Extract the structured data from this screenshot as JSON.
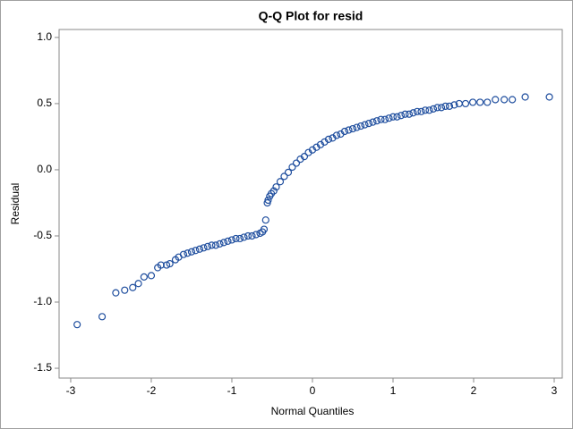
{
  "chart_data": {
    "type": "scatter",
    "title": "Q-Q Plot for resid",
    "xlabel": "Normal Quantiles",
    "ylabel": "Residual",
    "color": "#1f4e9e",
    "xlim": [
      -3.144,
      3.1
    ],
    "ylim": [
      -1.574,
      1.06
    ],
    "xticks": [
      -3,
      -2,
      -1,
      0,
      1,
      2,
      3
    ],
    "yticks": [
      {
        "value": 1.0,
        "label": "1.0"
      },
      0.5,
      {
        "value": 0.0,
        "label": "0.0"
      },
      -0.5,
      {
        "value": -1.0,
        "label": "-1.0"
      },
      -1.5
    ],
    "x": [
      -2.92,
      -2.61,
      -2.44,
      -2.33,
      -2.23,
      -2.16,
      -2.09,
      -2.0,
      -1.92,
      -1.88,
      -1.81,
      -1.77,
      -1.7,
      -1.66,
      -1.6,
      -1.55,
      -1.5,
      -1.45,
      -1.4,
      -1.35,
      -1.3,
      -1.25,
      -1.2,
      -1.15,
      -1.1,
      -1.05,
      -1.0,
      -0.95,
      -0.9,
      -0.85,
      -0.8,
      -0.75,
      -0.7,
      -0.65,
      -0.62,
      -0.6,
      -0.58,
      -0.56,
      -0.55,
      -0.53,
      -0.51,
      -0.48,
      -0.45,
      -0.4,
      -0.35,
      -0.3,
      -0.25,
      -0.2,
      -0.15,
      -0.1,
      -0.05,
      0.0,
      0.05,
      0.1,
      0.15,
      0.2,
      0.25,
      0.3,
      0.35,
      0.4,
      0.45,
      0.5,
      0.55,
      0.6,
      0.65,
      0.7,
      0.75,
      0.8,
      0.85,
      0.9,
      0.95,
      1.0,
      1.05,
      1.1,
      1.15,
      1.2,
      1.25,
      1.3,
      1.35,
      1.4,
      1.45,
      1.5,
      1.55,
      1.6,
      1.65,
      1.7,
      1.76,
      1.82,
      1.9,
      1.99,
      2.08,
      2.17,
      2.27,
      2.38,
      2.48,
      2.64,
      2.94
    ],
    "values": [
      -1.17,
      -1.11,
      -0.93,
      -0.91,
      -0.89,
      -0.86,
      -0.81,
      -0.8,
      -0.74,
      -0.72,
      -0.72,
      -0.71,
      -0.68,
      -0.66,
      -0.64,
      -0.63,
      -0.62,
      -0.61,
      -0.6,
      -0.59,
      -0.58,
      -0.57,
      -0.57,
      -0.56,
      -0.55,
      -0.54,
      -0.53,
      -0.52,
      -0.52,
      -0.51,
      -0.5,
      -0.5,
      -0.49,
      -0.48,
      -0.47,
      -0.45,
      -0.38,
      -0.25,
      -0.23,
      -0.2,
      -0.18,
      -0.16,
      -0.13,
      -0.09,
      -0.05,
      -0.02,
      0.02,
      0.05,
      0.08,
      0.1,
      0.13,
      0.15,
      0.17,
      0.19,
      0.21,
      0.23,
      0.24,
      0.26,
      0.27,
      0.29,
      0.3,
      0.31,
      0.32,
      0.33,
      0.34,
      0.35,
      0.36,
      0.37,
      0.38,
      0.38,
      0.39,
      0.4,
      0.4,
      0.41,
      0.42,
      0.42,
      0.43,
      0.44,
      0.44,
      0.45,
      0.45,
      0.46,
      0.47,
      0.47,
      0.48,
      0.48,
      0.49,
      0.5,
      0.5,
      0.51,
      0.51,
      0.51,
      0.53,
      0.53,
      0.53,
      0.55,
      0.55
    ]
  }
}
